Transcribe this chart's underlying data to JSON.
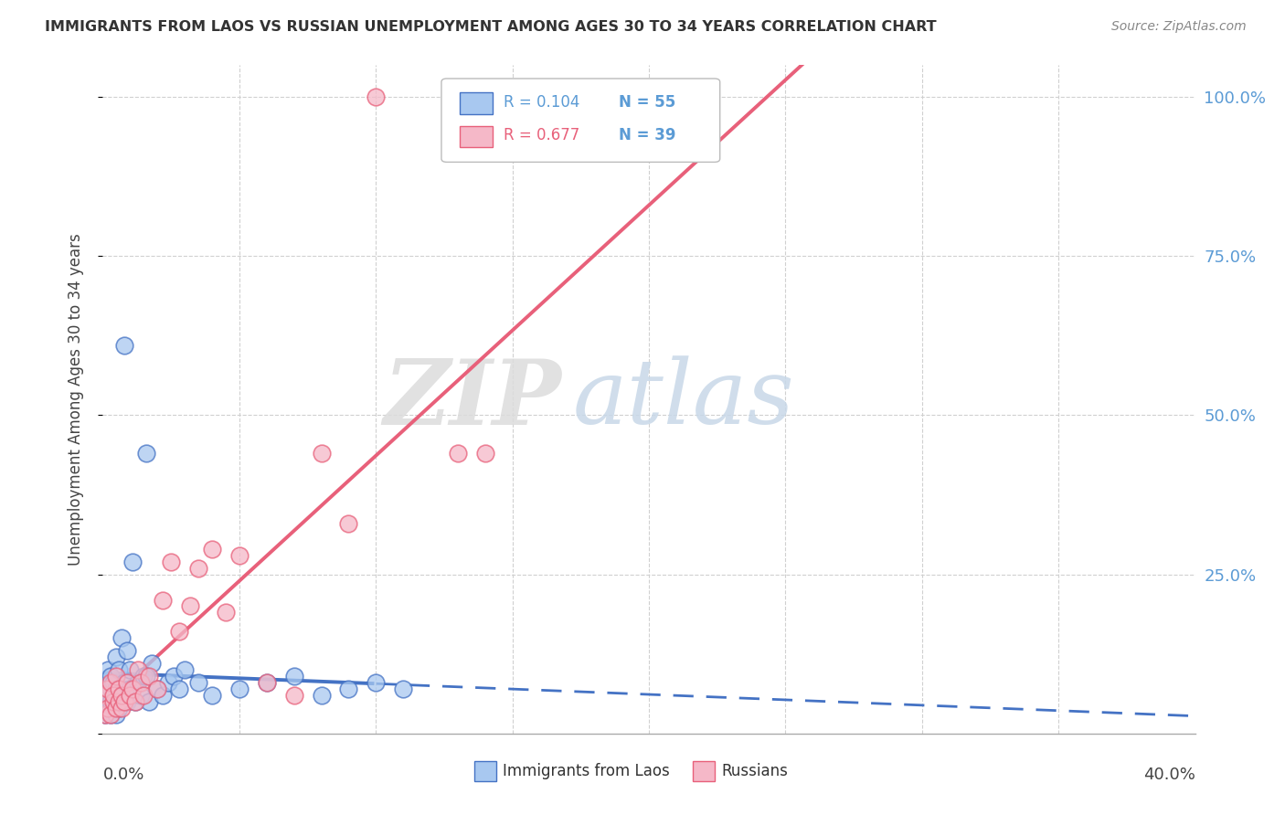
{
  "title": "IMMIGRANTS FROM LAOS VS RUSSIAN UNEMPLOYMENT AMONG AGES 30 TO 34 YEARS CORRELATION CHART",
  "source": "Source: ZipAtlas.com",
  "ylabel": "Unemployment Among Ages 30 to 34 years",
  "xlim": [
    0.0,
    0.4
  ],
  "ylim": [
    0.0,
    1.05
  ],
  "watermark_zip": "ZIP",
  "watermark_atlas": "atlas",
  "blue_color": "#A8C8F0",
  "pink_color": "#F5B8C8",
  "blue_line_color": "#4472C4",
  "pink_line_color": "#E8607A",
  "blue_r": "R = 0.104",
  "blue_n": "N = 55",
  "pink_r": "R = 0.677",
  "pink_n": "N = 39",
  "legend_label_blue": "Immigrants from Laos",
  "legend_label_pink": "Russians",
  "laos_x": [
    0.001,
    0.001,
    0.001,
    0.002,
    0.002,
    0.002,
    0.002,
    0.003,
    0.003,
    0.003,
    0.003,
    0.004,
    0.004,
    0.004,
    0.005,
    0.005,
    0.005,
    0.005,
    0.006,
    0.006,
    0.006,
    0.007,
    0.007,
    0.007,
    0.008,
    0.008,
    0.009,
    0.009,
    0.01,
    0.01,
    0.011,
    0.012,
    0.013,
    0.014,
    0.015,
    0.016,
    0.017,
    0.018,
    0.02,
    0.022,
    0.024,
    0.026,
    0.028,
    0.03,
    0.035,
    0.04,
    0.05,
    0.06,
    0.07,
    0.08,
    0.09,
    0.1,
    0.11,
    0.016,
    0.008
  ],
  "laos_y": [
    0.03,
    0.05,
    0.07,
    0.04,
    0.06,
    0.08,
    0.1,
    0.03,
    0.05,
    0.07,
    0.09,
    0.04,
    0.06,
    0.08,
    0.03,
    0.05,
    0.07,
    0.12,
    0.04,
    0.06,
    0.1,
    0.05,
    0.07,
    0.15,
    0.06,
    0.08,
    0.05,
    0.13,
    0.07,
    0.1,
    0.27,
    0.05,
    0.08,
    0.06,
    0.09,
    0.44,
    0.05,
    0.11,
    0.07,
    0.06,
    0.08,
    0.09,
    0.07,
    0.1,
    0.08,
    0.06,
    0.07,
    0.08,
    0.09,
    0.06,
    0.07,
    0.08,
    0.07,
    0.09,
    0.61
  ],
  "russian_x": [
    0.001,
    0.001,
    0.002,
    0.002,
    0.003,
    0.003,
    0.004,
    0.004,
    0.005,
    0.005,
    0.006,
    0.006,
    0.007,
    0.007,
    0.008,
    0.009,
    0.01,
    0.011,
    0.012,
    0.013,
    0.014,
    0.015,
    0.017,
    0.02,
    0.022,
    0.025,
    0.028,
    0.032,
    0.035,
    0.04,
    0.045,
    0.05,
    0.06,
    0.07,
    0.08,
    0.09,
    0.1,
    0.13,
    0.14
  ],
  "russian_y": [
    0.03,
    0.06,
    0.04,
    0.07,
    0.03,
    0.08,
    0.05,
    0.06,
    0.04,
    0.09,
    0.05,
    0.07,
    0.04,
    0.06,
    0.05,
    0.08,
    0.06,
    0.07,
    0.05,
    0.1,
    0.08,
    0.06,
    0.09,
    0.07,
    0.21,
    0.27,
    0.16,
    0.2,
    0.26,
    0.29,
    0.19,
    0.28,
    0.08,
    0.06,
    0.44,
    0.33,
    1.0,
    0.44,
    0.44
  ]
}
